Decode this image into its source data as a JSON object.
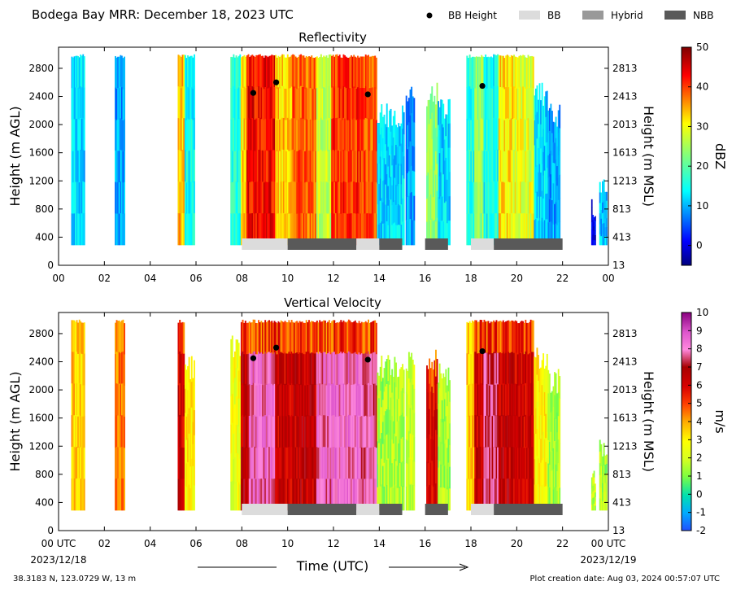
{
  "header": {
    "title": "Bodega Bay MRR:  December 18, 2023 UTC"
  },
  "legend": {
    "placement": "top-right",
    "items": [
      {
        "label": "BB Height",
        "kind": "marker",
        "color": "#000000"
      },
      {
        "label": "BB",
        "kind": "patch",
        "color": "#dcdcdc"
      },
      {
        "label": "Hybrid",
        "kind": "patch",
        "color": "#999999"
      },
      {
        "label": "NBB",
        "kind": "patch",
        "color": "#595959"
      }
    ]
  },
  "footer": {
    "location": "38.3183 N, 123.0729 W, 13 m",
    "creation": "Plot creation date: Aug 03, 2024 00:57:07 UTC",
    "xlabel": "Time (UTC)",
    "start_date": "2023/12/18",
    "end_date": "2023/12/19"
  },
  "chart_data": [
    {
      "type": "heatmap",
      "title": "Reflectivity",
      "ylabel": "Height (m AGL)",
      "y2label": "Height (m MSL)",
      "xlim": [
        0,
        24
      ],
      "ylim": [
        0,
        3100
      ],
      "xticks": [
        "00",
        "02",
        "04",
        "06",
        "08",
        "10",
        "12",
        "14",
        "16",
        "18",
        "20",
        "22",
        "00"
      ],
      "yticks": [
        0,
        400,
        800,
        1200,
        1600,
        2000,
        2400,
        2800
      ],
      "y2ticks": [
        13,
        413,
        813,
        1213,
        1613,
        2013,
        2413,
        2813
      ],
      "colorbar": {
        "label": "dBZ",
        "range": [
          -5,
          50
        ],
        "ticks": [
          0,
          10,
          20,
          30,
          40,
          50
        ],
        "colormap": "jet"
      },
      "field": "reflectivity",
      "data_top_m": 3000,
      "data_bottom_m": 290,
      "bb_heights": [
        {
          "time": 8.5,
          "height": 2450
        },
        {
          "time": 9.5,
          "height": 2600
        },
        {
          "time": 13.5,
          "height": 2430
        },
        {
          "time": 18.5,
          "height": 2550
        }
      ],
      "bb_type_bar": [
        {
          "start": 8.0,
          "end": 10.0,
          "type": "BB"
        },
        {
          "start": 10.0,
          "end": 13.0,
          "type": "NBB"
        },
        {
          "start": 13.0,
          "end": 14.0,
          "type": "BB"
        },
        {
          "start": 14.0,
          "end": 15.0,
          "type": "NBB"
        },
        {
          "start": 16.0,
          "end": 17.0,
          "type": "NBB"
        },
        {
          "start": 18.0,
          "end": 19.0,
          "type": "BB"
        },
        {
          "start": 19.0,
          "end": 22.0,
          "type": "NBB"
        }
      ],
      "precip_segments": [
        {
          "start": 0.55,
          "end": 1.15,
          "intensity": 12,
          "top": 3000
        },
        {
          "start": 2.45,
          "end": 2.9,
          "intensity": 9,
          "top": 3000
        },
        {
          "start": 5.2,
          "end": 5.5,
          "intensity": 34,
          "top": 3000
        },
        {
          "start": 5.5,
          "end": 5.95,
          "intensity": 14,
          "top": 3000
        },
        {
          "start": 7.5,
          "end": 7.95,
          "intensity": 16,
          "top": 3000
        },
        {
          "start": 7.95,
          "end": 8.2,
          "intensity": 32,
          "top": 3000
        },
        {
          "start": 8.2,
          "end": 9.45,
          "intensity": 43,
          "top": 3000
        },
        {
          "start": 9.45,
          "end": 10.2,
          "intensity": 33,
          "top": 3000
        },
        {
          "start": 10.2,
          "end": 11.25,
          "intensity": 38,
          "top": 3000
        },
        {
          "start": 11.25,
          "end": 11.9,
          "intensity": 27,
          "top": 3000
        },
        {
          "start": 11.9,
          "end": 13.2,
          "intensity": 41,
          "top": 3000
        },
        {
          "start": 13.2,
          "end": 13.9,
          "intensity": 39,
          "top": 3000
        },
        {
          "start": 13.9,
          "end": 15.1,
          "intensity": 12,
          "top": 2300
        },
        {
          "start": 15.15,
          "end": 15.55,
          "intensity": 9,
          "top": 2600
        },
        {
          "start": 16.05,
          "end": 16.55,
          "intensity": 24,
          "top": 2600
        },
        {
          "start": 16.55,
          "end": 17.1,
          "intensity": 12,
          "top": 2400
        },
        {
          "start": 17.8,
          "end": 18.15,
          "intensity": 16,
          "top": 3000
        },
        {
          "start": 18.15,
          "end": 18.55,
          "intensity": 24,
          "top": 3000
        },
        {
          "start": 18.55,
          "end": 19.2,
          "intensity": 15,
          "top": 3000
        },
        {
          "start": 19.2,
          "end": 19.85,
          "intensity": 32,
          "top": 3000
        },
        {
          "start": 19.85,
          "end": 20.75,
          "intensity": 29,
          "top": 3000
        },
        {
          "start": 20.75,
          "end": 21.35,
          "intensity": 12,
          "top": 2600
        },
        {
          "start": 21.35,
          "end": 21.9,
          "intensity": 9,
          "top": 2300
        },
        {
          "start": 23.25,
          "end": 23.45,
          "intensity": 0,
          "top": 1000
        },
        {
          "start": 23.6,
          "end": 23.95,
          "intensity": 11,
          "top": 1300
        }
      ]
    },
    {
      "type": "heatmap",
      "title": "Vertical Velocity",
      "ylabel": "Height (m AGL)",
      "y2label": "Height (m MSL)",
      "xlim": [
        0,
        24
      ],
      "ylim": [
        0,
        3100
      ],
      "xticks": [
        "00 UTC",
        "02",
        "04",
        "06",
        "08",
        "10",
        "12",
        "14",
        "16",
        "18",
        "20",
        "22",
        "00 UTC"
      ],
      "yticks": [
        0,
        400,
        800,
        1200,
        1600,
        2000,
        2400,
        2800
      ],
      "y2ticks": [
        13,
        413,
        813,
        1213,
        1613,
        2013,
        2413,
        2813
      ],
      "colorbar": {
        "label": "m/s",
        "range": [
          -2,
          10
        ],
        "ticks": [
          -2,
          -1,
          0,
          1,
          2,
          3,
          4,
          5,
          6,
          7,
          8,
          9,
          10
        ],
        "colormap": "velocity"
      },
      "field": "velocity",
      "data_top_m": 3000,
      "data_bottom_m": 290,
      "bb_heights": [
        {
          "time": 8.5,
          "height": 2450
        },
        {
          "time": 9.5,
          "height": 2600
        },
        {
          "time": 13.5,
          "height": 2430
        },
        {
          "time": 18.5,
          "height": 2550
        }
      ],
      "bb_type_bar": [
        {
          "start": 8.0,
          "end": 10.0,
          "type": "BB"
        },
        {
          "start": 10.0,
          "end": 13.0,
          "type": "NBB"
        },
        {
          "start": 13.0,
          "end": 14.0,
          "type": "BB"
        },
        {
          "start": 14.0,
          "end": 15.0,
          "type": "NBB"
        },
        {
          "start": 16.0,
          "end": 17.0,
          "type": "NBB"
        },
        {
          "start": 18.0,
          "end": 19.0,
          "type": "BB"
        },
        {
          "start": 19.0,
          "end": 22.0,
          "type": "NBB"
        }
      ],
      "precip_segments": [
        {
          "start": 0.55,
          "end": 1.15,
          "intensity": 3.5,
          "top": 3000
        },
        {
          "start": 2.45,
          "end": 2.9,
          "intensity": 4.5,
          "top": 3000
        },
        {
          "start": 5.2,
          "end": 5.5,
          "intensity": 6.2,
          "top": 3000
        },
        {
          "start": 5.5,
          "end": 5.95,
          "intensity": 3.0,
          "top": 2500
        },
        {
          "start": 7.5,
          "end": 7.95,
          "intensity": 2.5,
          "top": 2800
        },
        {
          "start": 7.95,
          "end": 8.3,
          "intensity": 6.5,
          "top": 3000
        },
        {
          "start": 8.3,
          "end": 9.45,
          "intensity": 8.0,
          "top": 3000
        },
        {
          "start": 9.45,
          "end": 10.2,
          "intensity": 6.2,
          "top": 3000
        },
        {
          "start": 10.2,
          "end": 11.25,
          "intensity": 6.4,
          "top": 3000
        },
        {
          "start": 11.25,
          "end": 11.9,
          "intensity": 8.0,
          "top": 3000
        },
        {
          "start": 11.9,
          "end": 13.2,
          "intensity": 8.2,
          "top": 3000
        },
        {
          "start": 13.2,
          "end": 13.9,
          "intensity": 7.8,
          "top": 3000
        },
        {
          "start": 13.9,
          "end": 15.1,
          "intensity": 1.5,
          "top": 2500
        },
        {
          "start": 15.15,
          "end": 15.55,
          "intensity": 2.0,
          "top": 2600
        },
        {
          "start": 16.05,
          "end": 16.55,
          "intensity": 6.0,
          "top": 2600
        },
        {
          "start": 16.55,
          "end": 17.1,
          "intensity": 1.5,
          "top": 2400
        },
        {
          "start": 17.8,
          "end": 18.15,
          "intensity": 3.5,
          "top": 3000
        },
        {
          "start": 18.15,
          "end": 18.55,
          "intensity": 6.2,
          "top": 3000
        },
        {
          "start": 18.55,
          "end": 19.2,
          "intensity": 7.5,
          "top": 3000
        },
        {
          "start": 19.2,
          "end": 19.85,
          "intensity": 6.4,
          "top": 3000
        },
        {
          "start": 19.85,
          "end": 20.75,
          "intensity": 6.2,
          "top": 3000
        },
        {
          "start": 20.75,
          "end": 21.35,
          "intensity": 3.0,
          "top": 2600
        },
        {
          "start": 21.35,
          "end": 21.9,
          "intensity": 1.5,
          "top": 2300
        },
        {
          "start": 23.25,
          "end": 23.45,
          "intensity": 1.8,
          "top": 1000
        },
        {
          "start": 23.6,
          "end": 23.95,
          "intensity": 1.5,
          "top": 1300
        }
      ]
    }
  ]
}
